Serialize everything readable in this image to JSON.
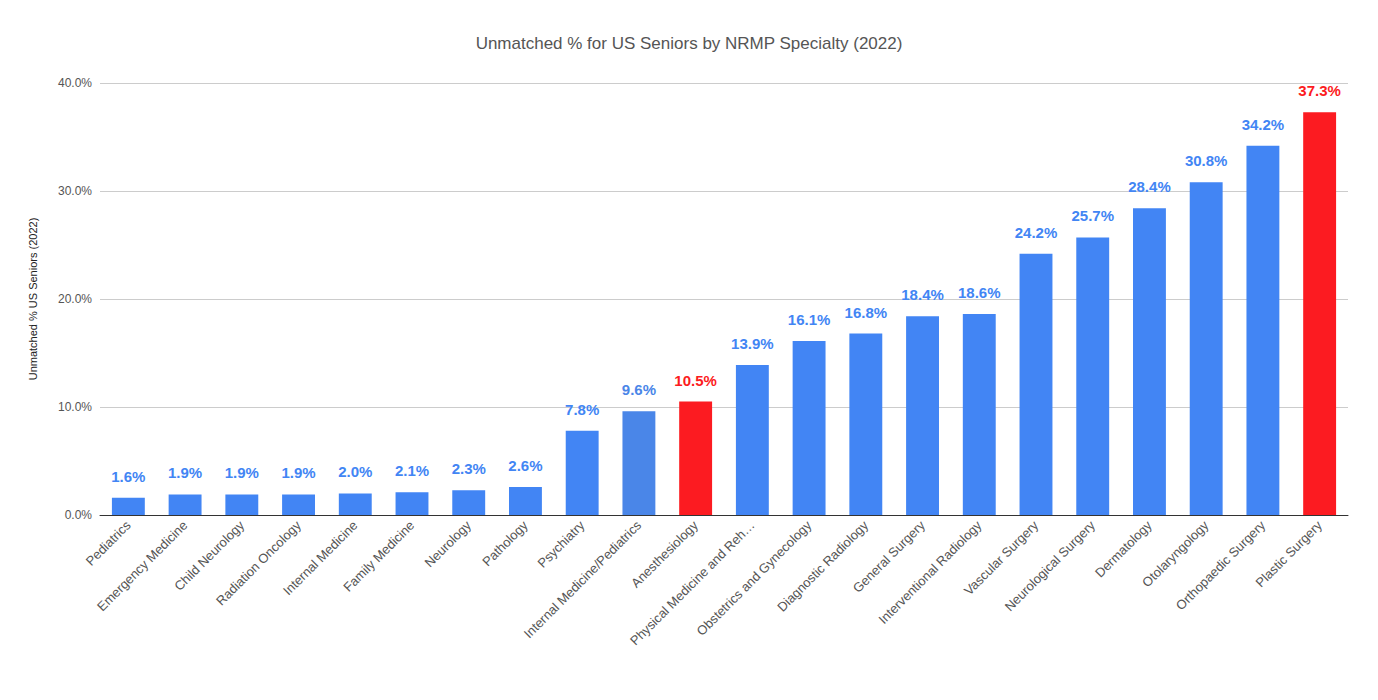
{
  "chart_data": {
    "type": "bar",
    "title": "Unmatched % for US Seniors by NRMP Specialty (2022)",
    "y_label": "Unmatched % US Seniors (2022)",
    "categories": [
      "Pediatrics",
      "Emergency Medicine",
      "Child Neurology",
      "Radiation Oncology",
      "Internal Medicine",
      "Family Medicine",
      "Neurology",
      "Pathology",
      "Psychiatry",
      "Internal Medicine/Pediatrics",
      "Anesthesiology",
      "Physical Medicine and Reh…",
      "Obstetrics and Gynecology",
      "Diagnostic Radiology",
      "General Surgery",
      "Interventional Radiology",
      "Vascular Surgery",
      "Neurological Surgery",
      "Dermatology",
      "Otolaryngology",
      "Orthopaedic Surgery",
      "Plastic Surgery"
    ],
    "values": [
      1.6,
      1.9,
      1.9,
      1.9,
      2.0,
      2.1,
      2.3,
      2.6,
      7.8,
      9.6,
      10.5,
      13.9,
      16.1,
      16.8,
      18.4,
      18.6,
      24.2,
      25.7,
      28.4,
      30.8,
      34.2,
      37.3
    ],
    "value_labels": [
      "1.6%",
      "1.9%",
      "1.9%",
      "1.9%",
      "2.0%",
      "2.1%",
      "2.3%",
      "2.6%",
      "7.8%",
      "9.6%",
      "10.5%",
      "13.9%",
      "16.1%",
      "16.8%",
      "18.4%",
      "18.6%",
      "24.2%",
      "25.7%",
      "28.4%",
      "30.8%",
      "34.2%",
      "37.3%"
    ],
    "colors": [
      "#4285f4",
      "#4285f4",
      "#4285f4",
      "#4285f4",
      "#4285f4",
      "#4285f4",
      "#4285f4",
      "#4285f4",
      "#4285f4",
      "#4a86e8",
      "#fc1b21",
      "#4285f4",
      "#4285f4",
      "#4285f4",
      "#4285f4",
      "#4285f4",
      "#4285f4",
      "#4285f4",
      "#4285f4",
      "#4285f4",
      "#4285f4",
      "#fc1b21"
    ],
    "ylim": [
      0,
      40
    ],
    "yticks": [
      {
        "value": 0,
        "label": "0.0%"
      },
      {
        "value": 10,
        "label": "10.0%"
      },
      {
        "value": 20,
        "label": "20.0%"
      },
      {
        "value": 30,
        "label": "30.0%"
      },
      {
        "value": 40,
        "label": "40.0%"
      }
    ],
    "grid": true,
    "data_labels": true
  }
}
